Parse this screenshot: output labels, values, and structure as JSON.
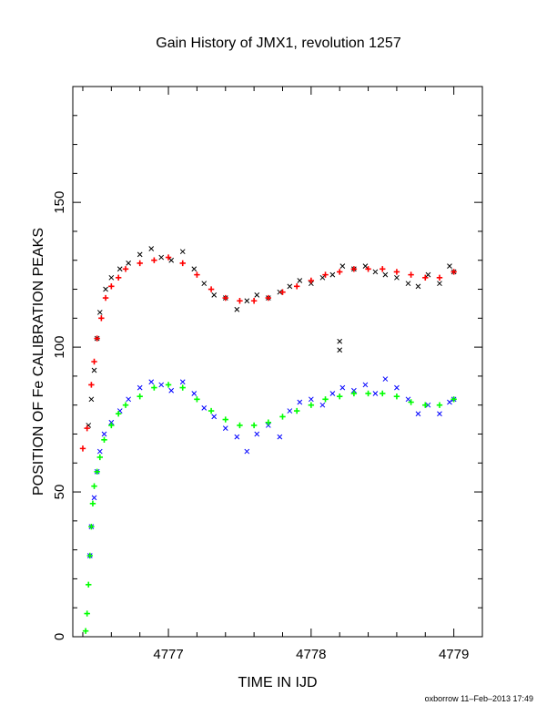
{
  "chart_data": {
    "type": "scatter",
    "title": "Gain History of JMX1, revolution 1257",
    "xlabel": "TIME IN IJD",
    "ylabel": "POSITION OF Fe CALIBRATION PEAKS",
    "xlim": [
      4776.33,
      4779.2
    ],
    "ylim": [
      0,
      190
    ],
    "x_ticks": [
      4777,
      4778,
      4779
    ],
    "y_ticks": [
      0,
      50,
      100,
      150
    ],
    "grid": false,
    "legend": "none",
    "series": [
      {
        "kind": "raw",
        "color": "#000000",
        "marker": "x",
        "points": [
          [
            4776.44,
            73
          ],
          [
            4776.46,
            82
          ],
          [
            4776.48,
            92
          ],
          [
            4776.5,
            103
          ],
          [
            4776.52,
            112
          ],
          [
            4776.56,
            120
          ],
          [
            4776.6,
            124
          ],
          [
            4776.66,
            127
          ],
          [
            4776.72,
            129
          ],
          [
            4776.8,
            132
          ],
          [
            4776.88,
            134
          ],
          [
            4776.95,
            131
          ],
          [
            4777.02,
            130
          ],
          [
            4777.1,
            133
          ],
          [
            4777.18,
            127
          ],
          [
            4777.25,
            122
          ],
          [
            4777.32,
            118
          ],
          [
            4777.4,
            117
          ],
          [
            4777.48,
            113
          ],
          [
            4777.55,
            116
          ],
          [
            4777.62,
            118
          ],
          [
            4777.7,
            117
          ],
          [
            4777.78,
            119
          ],
          [
            4777.85,
            121
          ],
          [
            4777.92,
            123
          ],
          [
            4778.0,
            122
          ],
          [
            4778.08,
            124
          ],
          [
            4778.15,
            125
          ],
          [
            4778.2,
            99
          ],
          [
            4778.2,
            102
          ],
          [
            4778.22,
            128
          ],
          [
            4778.3,
            127
          ],
          [
            4778.38,
            128
          ],
          [
            4778.45,
            126
          ],
          [
            4778.52,
            125
          ],
          [
            4778.6,
            124
          ],
          [
            4778.68,
            122
          ],
          [
            4778.75,
            121
          ],
          [
            4778.82,
            125
          ],
          [
            4778.9,
            122
          ],
          [
            4778.97,
            128
          ],
          [
            4779.0,
            126
          ]
        ]
      },
      {
        "kind": "fit",
        "color": "#ff0000",
        "marker": "+",
        "points": [
          [
            4776.4,
            65
          ],
          [
            4776.43,
            72
          ],
          [
            4776.46,
            87
          ],
          [
            4776.48,
            95
          ],
          [
            4776.5,
            103
          ],
          [
            4776.53,
            110
          ],
          [
            4776.56,
            117
          ],
          [
            4776.6,
            121
          ],
          [
            4776.65,
            124
          ],
          [
            4776.7,
            127
          ],
          [
            4776.8,
            129
          ],
          [
            4776.9,
            130
          ],
          [
            4777.0,
            131
          ],
          [
            4777.1,
            129
          ],
          [
            4777.2,
            125
          ],
          [
            4777.3,
            120
          ],
          [
            4777.4,
            117
          ],
          [
            4777.5,
            116
          ],
          [
            4777.6,
            116
          ],
          [
            4777.7,
            117
          ],
          [
            4777.8,
            119
          ],
          [
            4777.9,
            121
          ],
          [
            4778.0,
            123
          ],
          [
            4778.1,
            125
          ],
          [
            4778.2,
            126
          ],
          [
            4778.3,
            127
          ],
          [
            4778.4,
            127
          ],
          [
            4778.5,
            127
          ],
          [
            4778.6,
            126
          ],
          [
            4778.7,
            125
          ],
          [
            4778.8,
            124
          ],
          [
            4778.9,
            124
          ],
          [
            4779.0,
            126
          ]
        ]
      },
      {
        "kind": "raw",
        "color": "#0000ff",
        "marker": "x",
        "points": [
          [
            4776.45,
            28
          ],
          [
            4776.46,
            38
          ],
          [
            4776.48,
            48
          ],
          [
            4776.5,
            57
          ],
          [
            4776.52,
            64
          ],
          [
            4776.55,
            70
          ],
          [
            4776.6,
            74
          ],
          [
            4776.66,
            78
          ],
          [
            4776.72,
            82
          ],
          [
            4776.8,
            86
          ],
          [
            4776.88,
            88
          ],
          [
            4776.95,
            87
          ],
          [
            4777.02,
            85
          ],
          [
            4777.1,
            88
          ],
          [
            4777.18,
            84
          ],
          [
            4777.25,
            79
          ],
          [
            4777.32,
            76
          ],
          [
            4777.4,
            72
          ],
          [
            4777.48,
            69
          ],
          [
            4777.55,
            64
          ],
          [
            4777.62,
            70
          ],
          [
            4777.7,
            73
          ],
          [
            4777.78,
            69
          ],
          [
            4777.85,
            78
          ],
          [
            4777.92,
            81
          ],
          [
            4778.0,
            82
          ],
          [
            4778.08,
            80
          ],
          [
            4778.15,
            84
          ],
          [
            4778.22,
            86
          ],
          [
            4778.3,
            85
          ],
          [
            4778.38,
            87
          ],
          [
            4778.45,
            84
          ],
          [
            4778.52,
            89
          ],
          [
            4778.6,
            86
          ],
          [
            4778.68,
            82
          ],
          [
            4778.75,
            77
          ],
          [
            4778.82,
            80
          ],
          [
            4778.9,
            77
          ],
          [
            4778.97,
            81
          ],
          [
            4779.0,
            82
          ]
        ]
      },
      {
        "kind": "fit",
        "color": "#00ff00",
        "marker": "+",
        "points": [
          [
            4776.42,
            2
          ],
          [
            4776.43,
            8
          ],
          [
            4776.44,
            18
          ],
          [
            4776.45,
            28
          ],
          [
            4776.46,
            38
          ],
          [
            4776.47,
            46
          ],
          [
            4776.48,
            52
          ],
          [
            4776.5,
            57
          ],
          [
            4776.52,
            62
          ],
          [
            4776.55,
            68
          ],
          [
            4776.6,
            73
          ],
          [
            4776.65,
            77
          ],
          [
            4776.7,
            80
          ],
          [
            4776.8,
            83
          ],
          [
            4776.9,
            86
          ],
          [
            4777.0,
            87
          ],
          [
            4777.1,
            86
          ],
          [
            4777.2,
            82
          ],
          [
            4777.3,
            78
          ],
          [
            4777.4,
            75
          ],
          [
            4777.5,
            73
          ],
          [
            4777.6,
            73
          ],
          [
            4777.7,
            74
          ],
          [
            4777.8,
            76
          ],
          [
            4777.9,
            78
          ],
          [
            4778.0,
            80
          ],
          [
            4778.1,
            82
          ],
          [
            4778.2,
            83
          ],
          [
            4778.3,
            84
          ],
          [
            4778.4,
            84
          ],
          [
            4778.5,
            84
          ],
          [
            4778.6,
            83
          ],
          [
            4778.7,
            81
          ],
          [
            4778.8,
            80
          ],
          [
            4778.9,
            80
          ],
          [
            4779.0,
            82
          ]
        ]
      }
    ]
  },
  "footer": "oxborrow 11–Feb–2013 17:49"
}
